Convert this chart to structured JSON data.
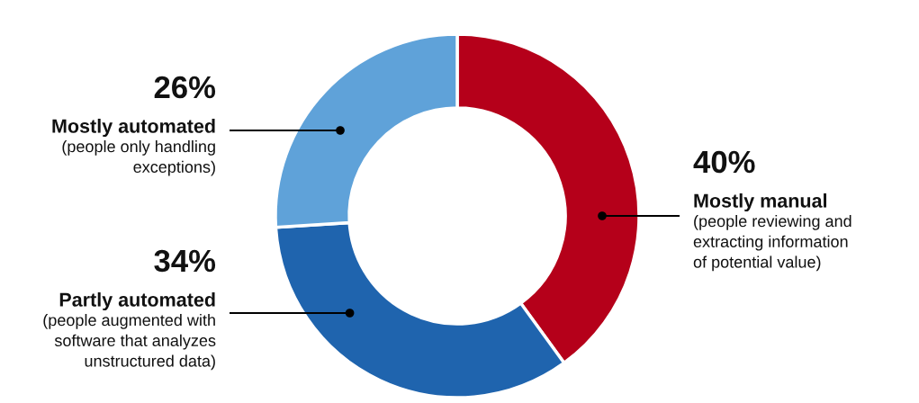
{
  "chart_data": {
    "type": "donut",
    "categories": [
      "Mostly manual",
      "Partly automated",
      "Mostly automated"
    ],
    "values": [
      40,
      34,
      26
    ],
    "value_labels": [
      "40%",
      "34%",
      "26%"
    ],
    "colors": [
      "#b5001a",
      "#1f64ae",
      "#5fa2d9"
    ],
    "annotations": [
      "(people reviewing and\nextracting information\nof potential value)",
      "(people augmented with\nsoftware that analyzes\nunstructured data)",
      "(people only handling\nexceptions)"
    ]
  }
}
